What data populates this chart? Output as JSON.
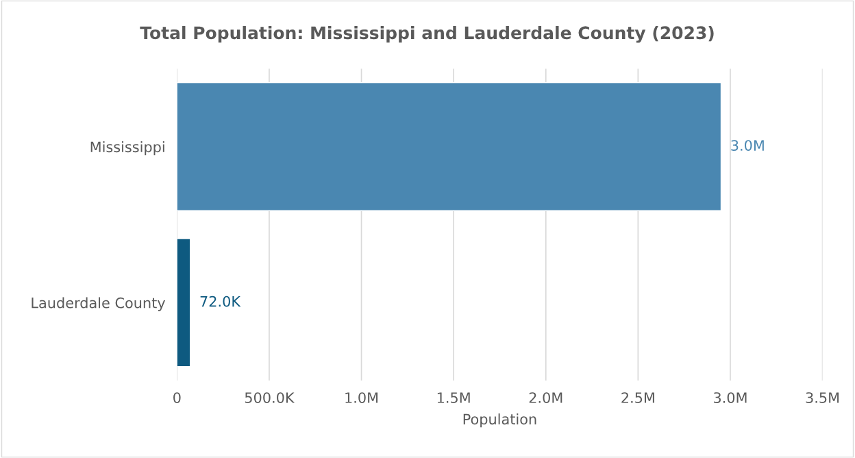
{
  "chart_data": {
    "type": "bar",
    "orientation": "horizontal",
    "title": "Total Population: Mississippi and Lauderdale County (2023)",
    "xlabel": "Population",
    "categories": [
      "Mississippi",
      "Lauderdale County"
    ],
    "values": [
      2950000,
      72000
    ],
    "colors": [
      "#4a87b1",
      "#0e5a80"
    ],
    "value_labels": [
      "3.0M",
      "72.0K"
    ],
    "xlim": [
      0,
      3500000
    ],
    "xticks": [
      0,
      {
        "value": 500000,
        "label": "500.0K"
      },
      {
        "value": 1000000,
        "label": "1.0M"
      },
      {
        "value": 1500000,
        "label": "1.5M"
      },
      {
        "value": 2000000,
        "label": "2.0M"
      },
      {
        "value": 2500000,
        "label": "2.5M"
      },
      {
        "value": 3000000,
        "label": "3.0M"
      },
      {
        "value": 3500000,
        "label": "3.5M"
      }
    ],
    "grid": "x",
    "legend": false
  }
}
